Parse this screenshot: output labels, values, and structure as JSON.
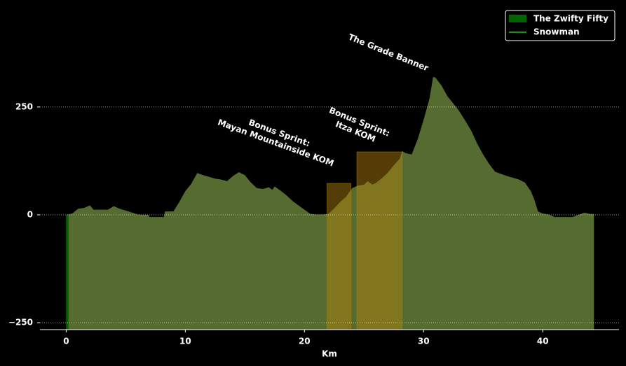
{
  "chart_data": {
    "type": "area",
    "xlabel": "Km",
    "xlim": [
      -2.2,
      46.4
    ],
    "ylim": [
      -266,
      498
    ],
    "xticks": [
      0,
      10,
      20,
      30,
      40
    ],
    "yticks": [
      {
        "value": -250,
        "label": "−250"
      },
      0,
      250
    ],
    "grid": true,
    "legend": "upper right",
    "profile": {
      "color": "#556b2f",
      "x": [
        0,
        0.5,
        1,
        1.5,
        2,
        2.3,
        3,
        3.5,
        4,
        4.5,
        5,
        6,
        6.9,
        7,
        8.2,
        8.3,
        9,
        9.5,
        10,
        10.5,
        11,
        11.5,
        12,
        12.5,
        13,
        13.5,
        14,
        14.5,
        15,
        15.5,
        16,
        16.5,
        17,
        17.3,
        17.5,
        18,
        18.5,
        19,
        19.5,
        20,
        20.5,
        21,
        21.5,
        22,
        22.5,
        23,
        23.5,
        24,
        24.5,
        25,
        25.3,
        25.7,
        26,
        26.5,
        27,
        27.5,
        28,
        28.2,
        28.5,
        29,
        29.5,
        30,
        30.5,
        30.8,
        31,
        31.5,
        32,
        32.5,
        33,
        33.5,
        34,
        34.5,
        35,
        35.5,
        36,
        36.5,
        37,
        37.5,
        38,
        38.5,
        39,
        39.3,
        39.6,
        40,
        40.5,
        41,
        42.5,
        43,
        43.5,
        44,
        44.3
      ],
      "values": [
        0,
        3,
        14,
        16,
        22,
        12,
        12,
        12,
        20,
        14,
        10,
        1,
        0,
        -5,
        -5,
        8,
        8,
        30,
        55,
        72,
        97,
        92,
        88,
        84,
        82,
        78,
        90,
        99,
        92,
        75,
        62,
        60,
        64,
        58,
        66,
        56,
        45,
        32,
        22,
        12,
        2,
        1,
        1,
        2,
        15,
        30,
        42,
        62,
        68,
        70,
        78,
        70,
        74,
        85,
        98,
        115,
        130,
        148,
        143,
        140,
        175,
        220,
        270,
        320,
        318,
        300,
        275,
        258,
        240,
        218,
        195,
        165,
        140,
        118,
        100,
        95,
        90,
        86,
        82,
        75,
        55,
        35,
        8,
        3,
        1,
        -5,
        -5,
        0,
        5,
        2,
        2
      ]
    },
    "series": [
      {
        "name": "The Zwifty Fifty",
        "color": "#006400",
        "x": [
          0,
          0.2
        ]
      },
      {
        "name": "Snowman",
        "color": "#228b22"
      }
    ],
    "segments": [
      {
        "x": [
          21.9,
          23.9
        ],
        "top": 73,
        "color": "#b8860b"
      },
      {
        "x": [
          24.4,
          28.2
        ],
        "top": 146,
        "color": "#b8860b"
      }
    ],
    "annotations": [
      {
        "lines": [
          "The Grade Banner"
        ]
      },
      {
        "lines": [
          "Bonus Sprint:",
          "Mayan Mountainside KOM"
        ]
      },
      {
        "lines": [
          "Bonus Sprint:",
          "Itza KOM"
        ]
      }
    ]
  }
}
